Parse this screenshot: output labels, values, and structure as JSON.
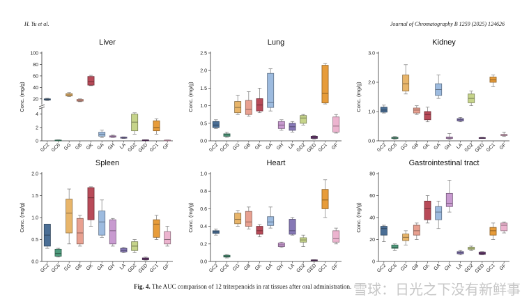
{
  "header": {
    "left": "H. Yu et al.",
    "right": "Journal of Chromatography B 1259 (2025) 124626"
  },
  "caption": {
    "label": "Fig. 4.",
    "text": "The AUC comparison of 12 triterpenoids in rat tissues after oral administration."
  },
  "watermark": "雪球：日光之下没有新鲜事",
  "colors": {
    "GC2": "#4a6e95",
    "GC6": "#4e9a7c",
    "GG": "#e8b56a",
    "GB": "#e8a090",
    "GK": "#b84a58",
    "GA": "#9dbbdf",
    "GH": "#c89ad0",
    "LA": "#8678b6",
    "GD2": "#c6d48a",
    "GED": "#6c3a75",
    "GC1": "#e79c3a",
    "GF": "#ecb4cf"
  },
  "chart_data": [
    {
      "type": "box",
      "title": "Liver",
      "ylabel": "Conc. (mg/g)",
      "scale": "broken",
      "yticks": [
        "0",
        "2",
        "4",
        "20",
        "40",
        "60",
        "80",
        "100"
      ],
      "categories": [
        "GC2",
        "GC6",
        "GG",
        "GB",
        "GK",
        "GA",
        "GH",
        "LA",
        "GD2",
        "GED",
        "GC1",
        "GF"
      ],
      "boxes": [
        {
          "min": 17,
          "q1": 18,
          "median": 19,
          "q3": 20,
          "max": 21
        },
        {
          "min": 0.05,
          "q1": 0.08,
          "median": 0.1,
          "q3": 0.12,
          "max": 0.15
        },
        {
          "min": 24,
          "q1": 25,
          "median": 27,
          "q3": 29,
          "max": 31
        },
        {
          "min": 15,
          "q1": 16,
          "median": 17,
          "q3": 19,
          "max": 20
        },
        {
          "min": 43,
          "q1": 44,
          "median": 50,
          "q3": 59,
          "max": 61
        },
        {
          "min": 0.5,
          "q1": 0.7,
          "median": 1.0,
          "q3": 1.3,
          "max": 1.6
        },
        {
          "min": 0.5,
          "q1": 0.55,
          "median": 0.65,
          "q3": 0.75,
          "max": 0.85
        },
        {
          "min": 0.35,
          "q1": 0.4,
          "median": 0.45,
          "q3": 0.55,
          "max": 0.6
        },
        {
          "min": 1.0,
          "q1": 1.5,
          "median": 2.8,
          "q3": 4.0,
          "max": 4.2
        },
        {
          "min": 0.08,
          "q1": 0.1,
          "median": 0.12,
          "q3": 0.14,
          "max": 0.15
        },
        {
          "min": 1.0,
          "q1": 1.5,
          "median": 2.0,
          "q3": 3.0,
          "max": 3.3
        },
        {
          "min": 0.05,
          "q1": 0.08,
          "median": 0.1,
          "q3": 0.12,
          "max": 0.14
        }
      ]
    },
    {
      "type": "box",
      "title": "Lung",
      "ylabel": "Conc. (mg/g)",
      "ylim": [
        0,
        2.5
      ],
      "yticks": [
        "0.0",
        "0.5",
        "1.0",
        "1.5",
        "2.0",
        "2.5"
      ],
      "categories": [
        "GC2",
        "GC6",
        "GG",
        "GB",
        "GK",
        "GA",
        "GH",
        "LA",
        "GD2",
        "GED",
        "GC1",
        "GF"
      ],
      "boxes": [
        {
          "min": 0.35,
          "q1": 0.38,
          "median": 0.45,
          "q3": 0.55,
          "max": 0.6
        },
        {
          "min": 0.1,
          "q1": 0.13,
          "median": 0.17,
          "q3": 0.2,
          "max": 0.25
        },
        {
          "min": 0.75,
          "q1": 0.8,
          "median": 0.95,
          "q3": 1.12,
          "max": 1.3
        },
        {
          "min": 0.7,
          "q1": 0.75,
          "median": 0.9,
          "q3": 1.15,
          "max": 1.4
        },
        {
          "min": 0.8,
          "q1": 0.85,
          "median": 1.02,
          "q3": 1.2,
          "max": 1.5
        },
        {
          "min": 0.85,
          "q1": 0.95,
          "median": 1.1,
          "q3": 1.92,
          "max": 2.05
        },
        {
          "min": 0.3,
          "q1": 0.35,
          "median": 0.45,
          "q3": 0.55,
          "max": 0.6
        },
        {
          "min": 0.25,
          "q1": 0.3,
          "median": 0.4,
          "q3": 0.5,
          "max": 0.55
        },
        {
          "min": 0.45,
          "q1": 0.5,
          "median": 0.65,
          "q3": 0.72,
          "max": 0.75
        },
        {
          "min": 0.05,
          "q1": 0.07,
          "median": 0.1,
          "q3": 0.13,
          "max": 0.15
        },
        {
          "min": 1.05,
          "q1": 1.08,
          "median": 1.35,
          "q3": 2.15,
          "max": 2.2
        },
        {
          "min": 0.22,
          "q1": 0.25,
          "median": 0.42,
          "q3": 0.68,
          "max": 0.75
        }
      ]
    },
    {
      "type": "box",
      "title": "Kidney",
      "ylabel": "Conc. (mg/g)",
      "ylim": [
        0,
        3.0
      ],
      "yticks": [
        "0.0",
        "1.0",
        "2.0",
        "3.0"
      ],
      "categories": [
        "GC2",
        "GC6",
        "GG",
        "GB",
        "GK",
        "GA",
        "GH",
        "LA",
        "GD2",
        "GED",
        "GC1",
        "GF"
      ],
      "boxes": [
        {
          "min": 0.95,
          "q1": 0.98,
          "median": 1.05,
          "q3": 1.15,
          "max": 1.22
        },
        {
          "min": 0.05,
          "q1": 0.08,
          "median": 0.1,
          "q3": 0.12,
          "max": 0.15
        },
        {
          "min": 1.6,
          "q1": 1.7,
          "median": 1.95,
          "q3": 2.25,
          "max": 2.6
        },
        {
          "min": 0.9,
          "q1": 0.95,
          "median": 1.05,
          "q3": 1.12,
          "max": 1.2
        },
        {
          "min": 0.65,
          "q1": 0.72,
          "median": 0.9,
          "q3": 1.0,
          "max": 1.15
        },
        {
          "min": 1.45,
          "q1": 1.55,
          "median": 1.75,
          "q3": 1.95,
          "max": 2.25
        },
        {
          "min": 0.05,
          "q1": 0.08,
          "median": 0.1,
          "q3": 0.13,
          "max": 0.25
        },
        {
          "min": 0.65,
          "q1": 0.68,
          "median": 0.72,
          "q3": 0.76,
          "max": 0.8
        },
        {
          "min": 1.2,
          "q1": 1.3,
          "median": 1.45,
          "q3": 1.6,
          "max": 1.7
        },
        {
          "min": 0.08,
          "q1": 0.09,
          "median": 0.1,
          "q3": 0.11,
          "max": 0.12
        },
        {
          "min": 1.85,
          "q1": 2.0,
          "median": 2.08,
          "q3": 2.18,
          "max": 2.25
        },
        {
          "min": 0.15,
          "q1": 0.18,
          "median": 0.2,
          "q3": 0.22,
          "max": 0.3
        }
      ]
    },
    {
      "type": "box",
      "title": "Spleen",
      "ylabel": "Conc. (mg/g)",
      "ylim": [
        0,
        2.0
      ],
      "yticks": [
        "0.0",
        "0.5",
        "1.0",
        "1.5",
        "2.0"
      ],
      "categories": [
        "GC2",
        "GC6",
        "GG",
        "GB",
        "GK",
        "GA",
        "GH",
        "LA",
        "GD2",
        "GED",
        "GC1",
        "GF"
      ],
      "boxes": [
        {
          "min": 0.3,
          "q1": 0.35,
          "median": 0.6,
          "q3": 0.85,
          "max": 0.85
        },
        {
          "min": 0.1,
          "q1": 0.12,
          "median": 0.18,
          "q3": 0.28,
          "max": 0.3
        },
        {
          "min": 0.4,
          "q1": 0.65,
          "median": 1.1,
          "q3": 1.42,
          "max": 1.65
        },
        {
          "min": 0.35,
          "q1": 0.4,
          "median": 0.65,
          "q3": 0.98,
          "max": 1.05
        },
        {
          "min": 0.8,
          "q1": 0.95,
          "median": 1.45,
          "q3": 1.68,
          "max": 1.7
        },
        {
          "min": 0.55,
          "q1": 0.6,
          "median": 0.9,
          "q3": 1.15,
          "max": 1.4
        },
        {
          "min": 0.35,
          "q1": 0.4,
          "median": 0.7,
          "q3": 0.95,
          "max": 0.98
        },
        {
          "min": 0.2,
          "q1": 0.22,
          "median": 0.25,
          "q3": 0.3,
          "max": 0.32
        },
        {
          "min": 0.2,
          "q1": 0.25,
          "median": 0.35,
          "q3": 0.45,
          "max": 0.5
        },
        {
          "min": 0.03,
          "q1": 0.04,
          "median": 0.06,
          "q3": 0.08,
          "max": 0.1
        },
        {
          "min": 0.5,
          "q1": 0.55,
          "median": 0.85,
          "q3": 0.95,
          "max": 1.05
        },
        {
          "min": 0.35,
          "q1": 0.4,
          "median": 0.5,
          "q3": 0.68,
          "max": 0.8
        }
      ]
    },
    {
      "type": "box",
      "title": "Heart",
      "ylabel": "Conc. (mg/g)",
      "ylim": [
        0,
        1.0
      ],
      "yticks": [
        "0.0",
        "0.2",
        "0.4",
        "0.6",
        "0.8",
        "1.0"
      ],
      "categories": [
        "GC2",
        "GC6",
        "GG",
        "GB",
        "GK",
        "GA",
        "GH",
        "LA",
        "GD2",
        "GED",
        "GC1",
        "GF"
      ],
      "boxes": [
        {
          "min": 0.3,
          "q1": 0.32,
          "median": 0.335,
          "q3": 0.35,
          "max": 0.37
        },
        {
          "min": 0.04,
          "q1": 0.05,
          "median": 0.06,
          "q3": 0.07,
          "max": 0.08
        },
        {
          "min": 0.4,
          "q1": 0.43,
          "median": 0.48,
          "q3": 0.55,
          "max": 0.58
        },
        {
          "min": 0.37,
          "q1": 0.4,
          "median": 0.45,
          "q3": 0.57,
          "max": 0.62
        },
        {
          "min": 0.28,
          "q1": 0.31,
          "median": 0.35,
          "q3": 0.4,
          "max": 0.42
        },
        {
          "min": 0.38,
          "q1": 0.41,
          "median": 0.45,
          "q3": 0.51,
          "max": 0.62
        },
        {
          "min": 0.16,
          "q1": 0.17,
          "median": 0.19,
          "q3": 0.21,
          "max": 0.22
        },
        {
          "min": 0.3,
          "q1": 0.31,
          "median": 0.35,
          "q3": 0.48,
          "max": 0.5
        },
        {
          "min": 0.17,
          "q1": 0.22,
          "median": 0.245,
          "q3": 0.27,
          "max": 0.3
        },
        {
          "min": 0.01,
          "q1": 0.012,
          "median": 0.015,
          "q3": 0.018,
          "max": 0.02
        },
        {
          "min": 0.5,
          "q1": 0.6,
          "median": 0.7,
          "q3": 0.82,
          "max": 0.93
        },
        {
          "min": 0.2,
          "q1": 0.22,
          "median": 0.26,
          "q3": 0.35,
          "max": 0.38
        }
      ]
    },
    {
      "type": "box",
      "title": "Gastrointestinal tract",
      "ylabel": "Conc. (mg/g)",
      "ylim": [
        0,
        80
      ],
      "yticks": [
        "0",
        "20",
        "40",
        "60",
        "80"
      ],
      "categories": [
        "GC2",
        "GC6",
        "GG",
        "GB",
        "GK",
        "GA",
        "GH",
        "LA",
        "GD2",
        "GED",
        "GC1",
        "GF"
      ],
      "boxes": [
        {
          "min": 18,
          "q1": 24,
          "median": 30,
          "q3": 32,
          "max": 33
        },
        {
          "min": 10,
          "q1": 12,
          "median": 13,
          "q3": 15,
          "max": 16
        },
        {
          "min": 15,
          "q1": 19,
          "median": 22,
          "q3": 25,
          "max": 28
        },
        {
          "min": 20,
          "q1": 24,
          "median": 28,
          "q3": 33,
          "max": 35
        },
        {
          "min": 35,
          "q1": 38,
          "median": 48,
          "q3": 55,
          "max": 60
        },
        {
          "min": 30,
          "q1": 38,
          "median": 45,
          "q3": 50,
          "max": 55
        },
        {
          "min": 45,
          "q1": 50,
          "median": 53,
          "q3": 62,
          "max": 74
        },
        {
          "min": 6,
          "q1": 7,
          "median": 8,
          "q3": 9,
          "max": 10
        },
        {
          "min": 10,
          "q1": 11,
          "median": 12,
          "q3": 13,
          "max": 14
        },
        {
          "min": 6,
          "q1": 6.5,
          "median": 7.5,
          "q3": 8.5,
          "max": 9
        },
        {
          "min": 20,
          "q1": 24,
          "median": 28,
          "q3": 31,
          "max": 35
        },
        {
          "min": 26,
          "q1": 28,
          "median": 33,
          "q3": 35,
          "max": 36
        }
      ]
    }
  ]
}
